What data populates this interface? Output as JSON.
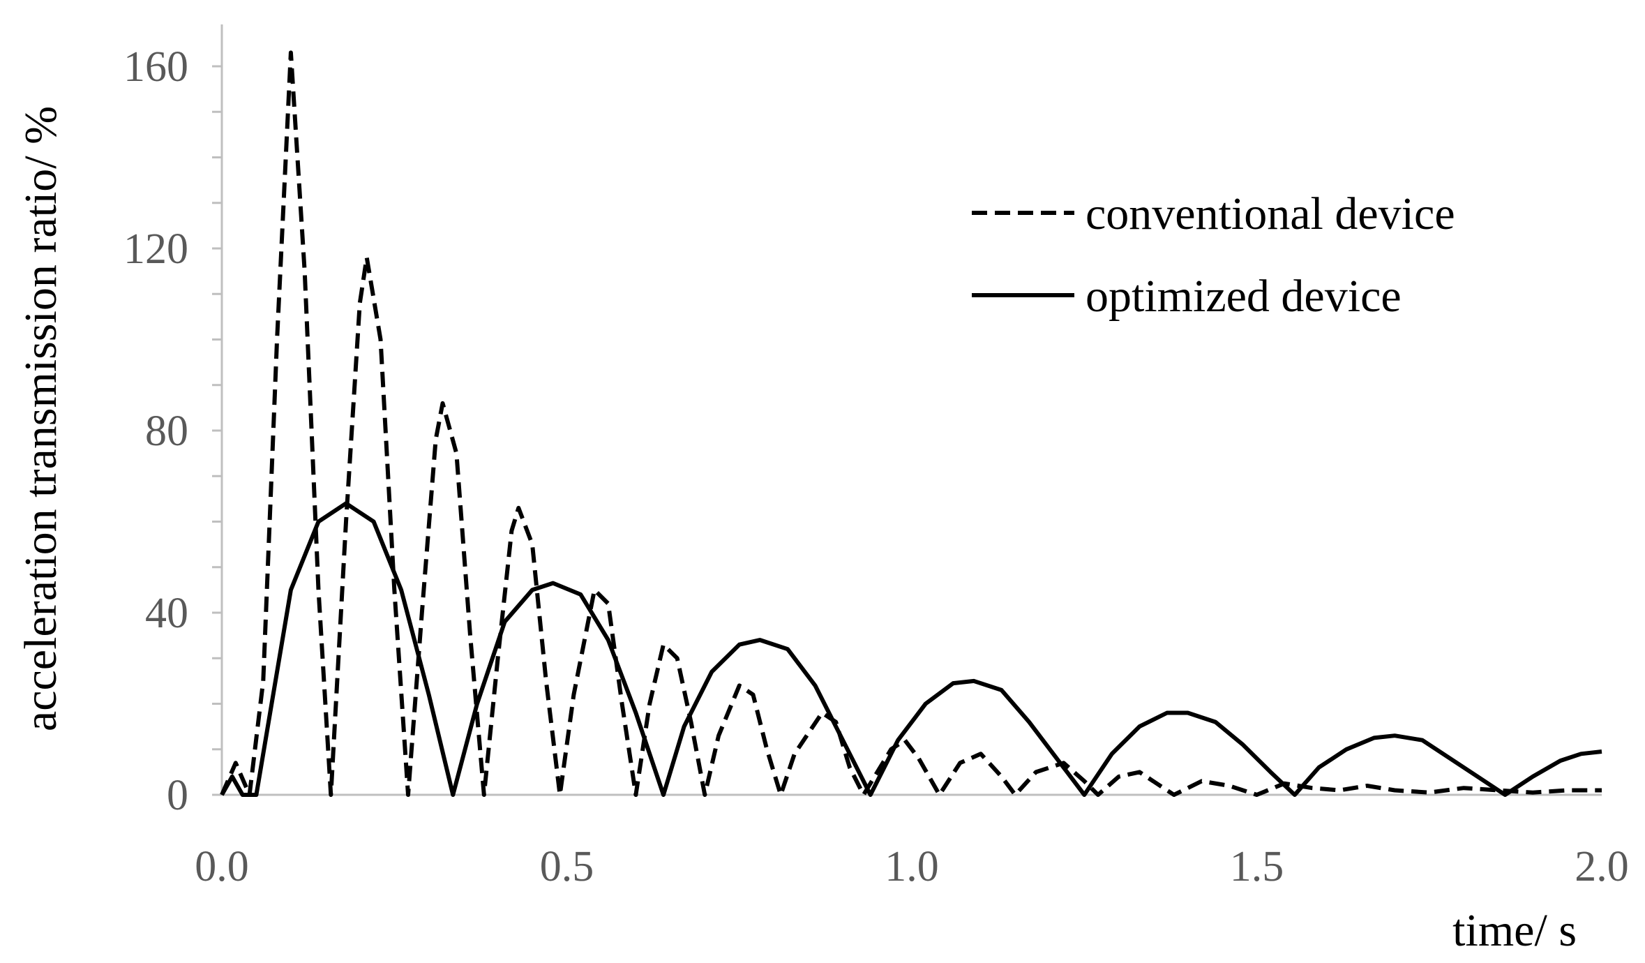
{
  "chart_data": {
    "type": "line",
    "title": "",
    "xlabel": "time/ s",
    "ylabel": "acceleration transmission ratio/ %",
    "xlim": [
      0,
      2.0
    ],
    "ylim": [
      0,
      160
    ],
    "x_ticks": [
      0.0,
      0.5,
      1.0,
      1.5,
      2.0
    ],
    "x_tick_labels": [
      "0.0",
      "0.5",
      "1.0",
      "1.5",
      "2.0"
    ],
    "y_ticks": [
      0,
      40,
      80,
      120,
      160
    ],
    "y_tick_labels": [
      "0",
      "40",
      "80",
      "120",
      "160"
    ],
    "y_minor_step": 10,
    "grid": false,
    "legend_position": "top-right",
    "series": [
      {
        "name": "conventional device",
        "style": "dashed",
        "color": "#000000",
        "points": [
          [
            0.0,
            0
          ],
          [
            0.02,
            7
          ],
          [
            0.04,
            0
          ],
          [
            0.06,
            25
          ],
          [
            0.08,
            100
          ],
          [
            0.1,
            163
          ],
          [
            0.12,
            115
          ],
          [
            0.14,
            45
          ],
          [
            0.158,
            0
          ],
          [
            0.18,
            60
          ],
          [
            0.2,
            108
          ],
          [
            0.21,
            118
          ],
          [
            0.23,
            100
          ],
          [
            0.25,
            45
          ],
          [
            0.27,
            0
          ],
          [
            0.29,
            40
          ],
          [
            0.31,
            78
          ],
          [
            0.32,
            86
          ],
          [
            0.34,
            75
          ],
          [
            0.36,
            35
          ],
          [
            0.38,
            0
          ],
          [
            0.4,
            30
          ],
          [
            0.42,
            58
          ],
          [
            0.43,
            63
          ],
          [
            0.45,
            55
          ],
          [
            0.47,
            25
          ],
          [
            0.49,
            0
          ],
          [
            0.51,
            22
          ],
          [
            0.54,
            45
          ],
          [
            0.56,
            42
          ],
          [
            0.58,
            20
          ],
          [
            0.6,
            0
          ],
          [
            0.62,
            20
          ],
          [
            0.64,
            33
          ],
          [
            0.66,
            30
          ],
          [
            0.68,
            16
          ],
          [
            0.7,
            0
          ],
          [
            0.72,
            13
          ],
          [
            0.75,
            24
          ],
          [
            0.77,
            22
          ],
          [
            0.79,
            10
          ],
          [
            0.81,
            0
          ],
          [
            0.83,
            9
          ],
          [
            0.87,
            18
          ],
          [
            0.89,
            16
          ],
          [
            0.91,
            6
          ],
          [
            0.93,
            0
          ],
          [
            0.97,
            10
          ],
          [
            0.99,
            12
          ],
          [
            1.01,
            8
          ],
          [
            1.04,
            0
          ],
          [
            1.07,
            7
          ],
          [
            1.1,
            9
          ],
          [
            1.13,
            4
          ],
          [
            1.15,
            0
          ],
          [
            1.18,
            5
          ],
          [
            1.22,
            7
          ],
          [
            1.25,
            3
          ],
          [
            1.27,
            0
          ],
          [
            1.3,
            4
          ],
          [
            1.33,
            5
          ],
          [
            1.36,
            2
          ],
          [
            1.38,
            0
          ],
          [
            1.42,
            3
          ],
          [
            1.46,
            2
          ],
          [
            1.5,
            0
          ],
          [
            1.54,
            2.5
          ],
          [
            1.58,
            1.5
          ],
          [
            1.62,
            1
          ],
          [
            1.66,
            2
          ],
          [
            1.7,
            1
          ],
          [
            1.75,
            0.5
          ],
          [
            1.8,
            1.5
          ],
          [
            1.85,
            1
          ],
          [
            1.9,
            0.5
          ],
          [
            1.95,
            1
          ],
          [
            2.0,
            1
          ]
        ]
      },
      {
        "name": "optimized device",
        "style": "solid",
        "color": "#000000",
        "points": [
          [
            0.0,
            0
          ],
          [
            0.015,
            4
          ],
          [
            0.03,
            0
          ],
          [
            0.05,
            0
          ],
          [
            0.07,
            18
          ],
          [
            0.1,
            45
          ],
          [
            0.14,
            60
          ],
          [
            0.18,
            64
          ],
          [
            0.22,
            60
          ],
          [
            0.26,
            45
          ],
          [
            0.3,
            22
          ],
          [
            0.335,
            0
          ],
          [
            0.37,
            20
          ],
          [
            0.41,
            38
          ],
          [
            0.45,
            45
          ],
          [
            0.48,
            46.5
          ],
          [
            0.52,
            44
          ],
          [
            0.56,
            34
          ],
          [
            0.6,
            18
          ],
          [
            0.64,
            0
          ],
          [
            0.67,
            15
          ],
          [
            0.71,
            27
          ],
          [
            0.75,
            33
          ],
          [
            0.78,
            34
          ],
          [
            0.82,
            32
          ],
          [
            0.86,
            24
          ],
          [
            0.9,
            12
          ],
          [
            0.94,
            0
          ],
          [
            0.98,
            12
          ],
          [
            1.02,
            20
          ],
          [
            1.06,
            24.5
          ],
          [
            1.09,
            25
          ],
          [
            1.13,
            23
          ],
          [
            1.17,
            16
          ],
          [
            1.21,
            8
          ],
          [
            1.25,
            0
          ],
          [
            1.29,
            9
          ],
          [
            1.33,
            15
          ],
          [
            1.37,
            18
          ],
          [
            1.4,
            18
          ],
          [
            1.44,
            16
          ],
          [
            1.48,
            11
          ],
          [
            1.52,
            5
          ],
          [
            1.555,
            0
          ],
          [
            1.59,
            6
          ],
          [
            1.63,
            10
          ],
          [
            1.67,
            12.5
          ],
          [
            1.7,
            13
          ],
          [
            1.74,
            12
          ],
          [
            1.78,
            8
          ],
          [
            1.82,
            4
          ],
          [
            1.86,
            0
          ],
          [
            1.9,
            4
          ],
          [
            1.94,
            7.5
          ],
          [
            1.97,
            9
          ],
          [
            2.0,
            9.5
          ]
        ]
      }
    ]
  }
}
